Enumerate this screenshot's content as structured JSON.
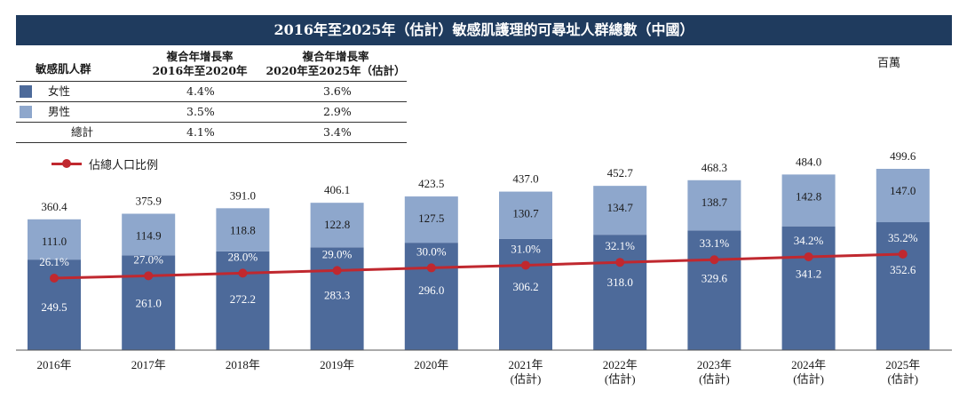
{
  "title": "2016年至2025年（估計）敏感肌護理的可尋址人群總數（中國）",
  "unit": "百萬",
  "table": {
    "col1_header": "敏感肌人群",
    "col2_header_line1": "複合年增長率",
    "col2_header_line2": "2016年至2020年",
    "col3_header_line1": "複合年增長率",
    "col3_header_line2": "2020年至2025年（估計）",
    "rows": [
      {
        "label": "女性",
        "cagr1": "4.4%",
        "cagr2": "3.6%",
        "color": "#4d6a9a"
      },
      {
        "label": "男性",
        "cagr1": "3.5%",
        "cagr2": "2.9%",
        "color": "#8ea7cc"
      },
      {
        "label": "總計",
        "cagr1": "4.1%",
        "cagr2": "3.4%",
        "color": ""
      }
    ]
  },
  "legend": {
    "ratio_label": "佔總人口比例",
    "ratio_color": "#c0282f"
  },
  "chart_data": {
    "type": "bar",
    "stacked": true,
    "categories": [
      "2016年",
      "2017年",
      "2018年",
      "2019年",
      "2020年",
      "2021年\n(估計)",
      "2022年\n(估計)",
      "2023年\n(估計)",
      "2024年\n(估計)",
      "2025年\n(估計)"
    ],
    "category_lines": [
      [
        "2016年"
      ],
      [
        "2017年"
      ],
      [
        "2018年"
      ],
      [
        "2019年"
      ],
      [
        "2020年"
      ],
      [
        "2021年",
        "(估計)"
      ],
      [
        "2022年",
        "(估計)"
      ],
      [
        "2023年",
        "(估計)"
      ],
      [
        "2024年",
        "(估計)"
      ],
      [
        "2025年",
        "(估計)"
      ]
    ],
    "series": [
      {
        "name": "女性",
        "color": "#4d6a9a",
        "values": [
          249.5,
          261.0,
          272.2,
          283.3,
          296.0,
          306.2,
          318.0,
          329.6,
          341.2,
          352.6
        ]
      },
      {
        "name": "男性",
        "color": "#8ea7cc",
        "values": [
          111.0,
          114.9,
          118.8,
          122.8,
          127.5,
          130.7,
          134.7,
          138.7,
          142.8,
          147.0
        ]
      }
    ],
    "totals": [
      360.4,
      375.9,
      391.0,
      406.1,
      423.5,
      437.0,
      452.7,
      468.3,
      484.0,
      499.6
    ],
    "line_series": {
      "name": "佔總人口比例",
      "color": "#c0282f",
      "values": [
        26.1,
        27.0,
        28.0,
        29.0,
        30.0,
        31.0,
        32.1,
        33.1,
        34.2,
        35.2
      ],
      "labels": [
        "26.1%",
        "27.0%",
        "28.0%",
        "29.0%",
        "30.0%",
        "31.0%",
        "32.1%",
        "33.1%",
        "34.2%",
        "35.2%"
      ]
    },
    "ylim": [
      0,
      600
    ],
    "grid": false
  }
}
